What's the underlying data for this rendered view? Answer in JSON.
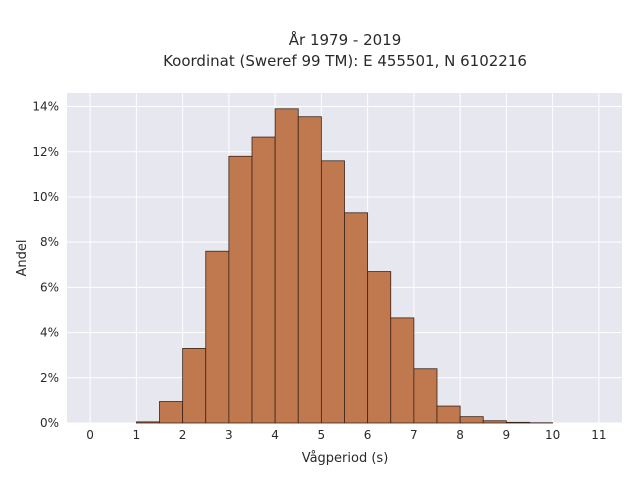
{
  "chart_data": {
    "type": "bar",
    "title": "År 1979 - 2019",
    "subtitle": "Koordinat (Sweref 99 TM): E 455501, N 6102216",
    "xlabel": "Vågperiod (s)",
    "ylabel": "Andel",
    "xlim": [
      -0.5,
      11.5
    ],
    "ylim": [
      0,
      14.6
    ],
    "xticks": [
      0,
      1,
      2,
      3,
      4,
      5,
      6,
      7,
      8,
      9,
      10,
      11
    ],
    "yticks": [
      {
        "value": 0,
        "label": "0%"
      },
      {
        "value": 2,
        "label": "2%"
      },
      {
        "value": 4,
        "label": "4%"
      },
      {
        "value": 6,
        "label": "6%"
      },
      {
        "value": 8,
        "label": "8%"
      },
      {
        "value": 10,
        "label": "10%"
      },
      {
        "value": 12,
        "label": "12%"
      },
      {
        "value": 14,
        "label": "14%"
      }
    ],
    "bin_width": 0.5,
    "bins": [
      {
        "x0": 1.0,
        "value": 0.05
      },
      {
        "x0": 1.5,
        "value": 0.95
      },
      {
        "x0": 2.0,
        "value": 3.3
      },
      {
        "x0": 2.5,
        "value": 7.6
      },
      {
        "x0": 3.0,
        "value": 11.8
      },
      {
        "x0": 3.5,
        "value": 12.65
      },
      {
        "x0": 4.0,
        "value": 13.9
      },
      {
        "x0": 4.5,
        "value": 13.55
      },
      {
        "x0": 5.0,
        "value": 11.6
      },
      {
        "x0": 5.5,
        "value": 9.3
      },
      {
        "x0": 6.0,
        "value": 6.7
      },
      {
        "x0": 6.5,
        "value": 4.65
      },
      {
        "x0": 7.0,
        "value": 2.4
      },
      {
        "x0": 7.5,
        "value": 0.75
      },
      {
        "x0": 8.0,
        "value": 0.28
      },
      {
        "x0": 8.5,
        "value": 0.1
      },
      {
        "x0": 9.0,
        "value": 0.03
      },
      {
        "x0": 9.5,
        "value": 0.01
      }
    ],
    "grid": true,
    "colors": {
      "bar_fill": "#c0784f",
      "bar_stroke": "#3a2418",
      "plot_bg": "#e6e7ef",
      "grid": "#ffffff"
    }
  }
}
